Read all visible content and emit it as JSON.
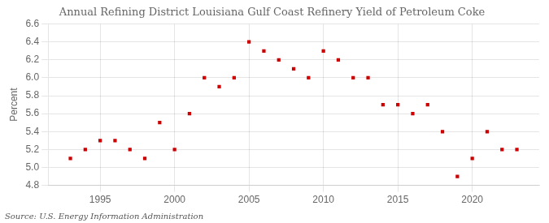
{
  "chart_data": {
    "type": "scatter",
    "title": "Annual Refining District Louisiana Gulf Coast Refinery Yield of Petroleum Coke",
    "ylabel": "Percent",
    "source": "Source: U.S. Energy Information Administration",
    "x": [
      1993,
      1994,
      1995,
      1996,
      1997,
      1998,
      1999,
      2000,
      2001,
      2002,
      2003,
      2004,
      2005,
      2006,
      2007,
      2008,
      2009,
      2010,
      2011,
      2012,
      2013,
      2014,
      2015,
      2016,
      2017,
      2018,
      2019,
      2020,
      2021,
      2022,
      2023
    ],
    "values": [
      5.1,
      5.2,
      5.3,
      5.3,
      5.2,
      5.1,
      5.5,
      5.2,
      5.6,
      6.0,
      5.9,
      6.0,
      6.4,
      6.3,
      6.2,
      6.1,
      6.0,
      6.3,
      6.2,
      6.0,
      6.0,
      5.7,
      5.7,
      5.6,
      5.7,
      5.4,
      4.9,
      5.1,
      5.4,
      5.2,
      5.2
    ],
    "color": "#cc0000",
    "marker": "square",
    "xlim": [
      1991.5,
      2024.5
    ],
    "xticks": [
      1995,
      2000,
      2005,
      2010,
      2015,
      2020
    ],
    "ylim": [
      4.8,
      6.6
    ],
    "yticks": [
      4.8,
      {
        "value": 5,
        "label": "5.0"
      },
      5.2,
      5.4,
      5.6,
      5.8,
      {
        "value": 6,
        "label": "6.0"
      },
      6.2,
      6.4,
      6.6
    ],
    "grid": true
  }
}
